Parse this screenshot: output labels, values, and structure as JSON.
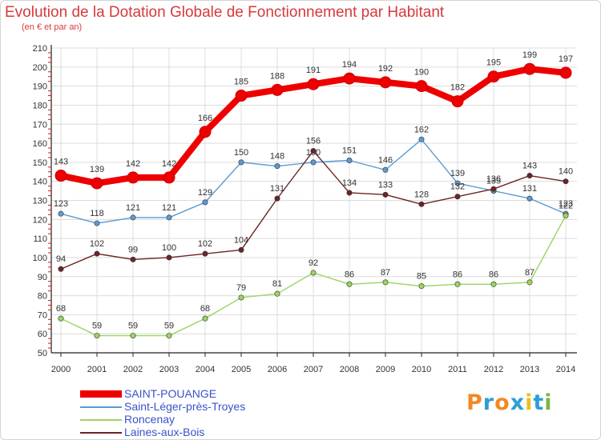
{
  "title": "Evolution de la Dotation Globale de Fonctionnement par Habitant",
  "subtitle": "(en € et par an)",
  "logo": {
    "text": "Proxiti",
    "letter_colors": [
      "#f08a24",
      "#2a9fd8",
      "#f08a24",
      "#2a9fd8",
      "#e8c020",
      "#2a9fd8",
      "#7ab648"
    ]
  },
  "chart_data": {
    "type": "line",
    "title": "Evolution de la Dotation Globale de Fonctionnement par Habitant",
    "subtitle": "(en € et par an)",
    "xlabel": "",
    "ylabel": "",
    "x": [
      "2000",
      "2001",
      "2002",
      "2003",
      "2004",
      "2005",
      "2006",
      "2007",
      "2008",
      "2009",
      "2010",
      "2011",
      "2012",
      "2013",
      "2014"
    ],
    "ylim": [
      50,
      210
    ],
    "yticks": [
      50,
      60,
      70,
      80,
      90,
      100,
      110,
      120,
      130,
      140,
      150,
      160,
      170,
      180,
      190,
      200,
      210
    ],
    "grid": true,
    "legend_position": "bottom-left",
    "series": [
      {
        "name": "SAINT-POUANGE",
        "color": "#ee0000",
        "emphasis": "thick",
        "values": [
          143,
          139,
          142,
          142,
          166,
          185,
          188,
          191,
          194,
          192,
          190,
          182,
          195,
          199,
          197
        ],
        "labels": [
          "143",
          "139",
          "142",
          "142",
          "166",
          "185",
          "188",
          "191",
          "194",
          "192",
          "190",
          "182",
          "195",
          "199",
          "197"
        ]
      },
      {
        "name": "Saint-Léger-près-Troyes",
        "color": "#5b9bd5",
        "values": [
          123,
          118,
          121,
          121,
          129,
          150,
          148,
          150,
          151,
          146,
          162,
          139,
          135,
          131,
          123
        ],
        "labels": [
          "123",
          "118",
          "121",
          "121",
          "129",
          "150",
          "148",
          "150",
          "151",
          "146",
          "162",
          "139",
          "135",
          "131",
          "123"
        ]
      },
      {
        "name": "Roncenay",
        "color": "#9bd462",
        "values": [
          68,
          59,
          59,
          59,
          68,
          79,
          81,
          92,
          86,
          87,
          85,
          86,
          86,
          87,
          122
        ],
        "labels": [
          "68",
          "59",
          "59",
          "59",
          "68",
          "79",
          "81",
          "92",
          "86",
          "87",
          "85",
          "86",
          "86",
          "87",
          "122"
        ]
      },
      {
        "name": "Laines-aux-Bois",
        "color": "#6b2424",
        "values": [
          94,
          102,
          99,
          100,
          102,
          104,
          131,
          156,
          134,
          133,
          128,
          132,
          136,
          143,
          140
        ],
        "labels": [
          "94",
          "102",
          "99",
          "100",
          "102",
          "104",
          "131",
          "156",
          "134",
          "133",
          "128",
          "132",
          "136",
          "143",
          "140"
        ]
      }
    ]
  }
}
